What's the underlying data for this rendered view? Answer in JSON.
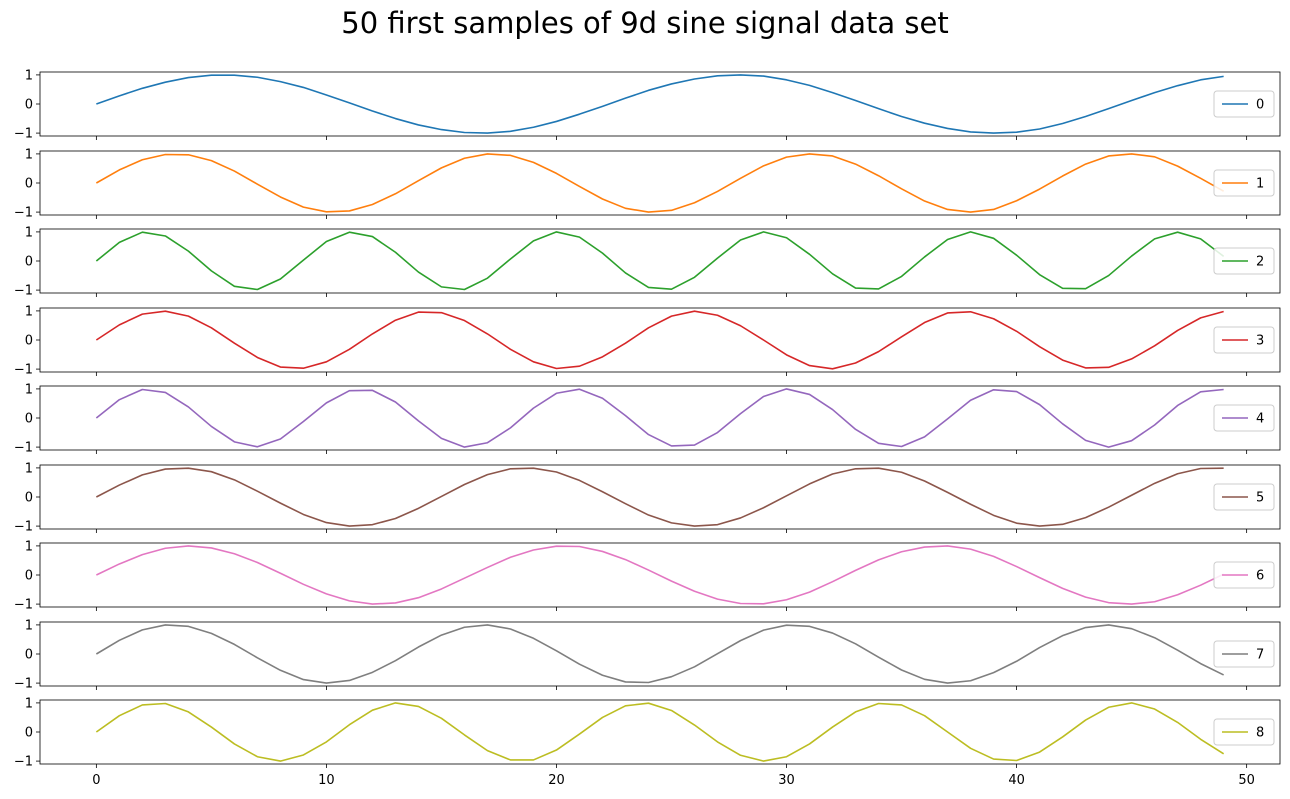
{
  "chart_data": {
    "type": "line",
    "title": "50 first samples of 9d sine signal data set",
    "xlabel": "",
    "ylabel": "",
    "xlim": [
      -2.45,
      51.45
    ],
    "ylim": [
      -1.1,
      1.1
    ],
    "x_ticks": [
      0,
      10,
      20,
      30,
      40,
      50
    ],
    "y_ticks": [
      -1,
      0,
      1
    ],
    "grid": false,
    "legend_placement": "right",
    "x": [
      0,
      1,
      2,
      3,
      4,
      5,
      6,
      7,
      8,
      9,
      10,
      11,
      12,
      13,
      14,
      15,
      16,
      17,
      18,
      19,
      20,
      21,
      22,
      23,
      24,
      25,
      26,
      27,
      28,
      29,
      30,
      31,
      32,
      33,
      34,
      35,
      36,
      37,
      38,
      39,
      40,
      41,
      42,
      43,
      44,
      45,
      46,
      47,
      48,
      49
    ],
    "series": [
      {
        "name": "0",
        "color": "#1f77b4",
        "values": [
          0.0,
          0.28,
          0.54,
          0.75,
          0.91,
          0.99,
          0.99,
          0.92,
          0.77,
          0.57,
          0.31,
          0.04,
          -0.24,
          -0.5,
          -0.72,
          -0.88,
          -0.98,
          -1.0,
          -0.94,
          -0.8,
          -0.6,
          -0.35,
          -0.08,
          0.2,
          0.47,
          0.69,
          0.86,
          0.97,
          1.0,
          0.96,
          0.83,
          0.64,
          0.39,
          0.12,
          -0.16,
          -0.43,
          -0.66,
          -0.84,
          -0.96,
          -1.0,
          -0.97,
          -0.86,
          -0.67,
          -0.43,
          -0.16,
          0.12,
          0.39,
          0.63,
          0.83,
          0.95
        ]
      },
      {
        "name": "1",
        "color": "#ff7f0e",
        "values": [
          0.0,
          0.45,
          0.8,
          0.98,
          0.97,
          0.77,
          0.41,
          -0.04,
          -0.48,
          -0.83,
          -0.99,
          -0.96,
          -0.74,
          -0.37,
          0.08,
          0.52,
          0.85,
          1.0,
          0.95,
          0.71,
          0.33,
          -0.12,
          -0.55,
          -0.87,
          -1.0,
          -0.94,
          -0.68,
          -0.29,
          0.16,
          0.59,
          0.89,
          1.0,
          0.93,
          0.65,
          0.25,
          -0.2,
          -0.62,
          -0.91,
          -1.0,
          -0.91,
          -0.61,
          -0.21,
          0.24,
          0.65,
          0.93,
          1.0,
          0.9,
          0.58,
          0.16,
          -0.28
        ]
      },
      {
        "name": "2",
        "color": "#2ca02c",
        "values": [
          0.0,
          0.64,
          0.99,
          0.86,
          0.34,
          -0.34,
          -0.87,
          -0.98,
          -0.62,
          0.03,
          0.67,
          0.99,
          0.84,
          0.3,
          -0.38,
          -0.89,
          -0.98,
          -0.59,
          0.07,
          0.69,
          1.0,
          0.82,
          0.27,
          -0.41,
          -0.91,
          -0.97,
          -0.56,
          0.1,
          0.72,
          1.0,
          0.8,
          0.23,
          -0.44,
          -0.93,
          -0.96,
          -0.53,
          0.14,
          0.74,
          1.0,
          0.78,
          0.2,
          -0.47,
          -0.94,
          -0.95,
          -0.5,
          0.17,
          0.76,
          0.99,
          0.76,
          0.16
        ]
      },
      {
        "name": "3",
        "color": "#d62728",
        "values": [
          0.0,
          0.52,
          0.89,
          0.99,
          0.82,
          0.42,
          -0.11,
          -0.6,
          -0.93,
          -0.97,
          -0.75,
          -0.32,
          0.21,
          0.68,
          0.96,
          0.94,
          0.67,
          0.21,
          -0.32,
          -0.75,
          -0.98,
          -0.9,
          -0.58,
          -0.11,
          0.42,
          0.82,
          0.99,
          0.85,
          0.49,
          0.0,
          -0.51,
          -0.88,
          -0.99,
          -0.79,
          -0.4,
          0.11,
          0.6,
          0.93,
          0.97,
          0.73,
          0.3,
          -0.23,
          -0.69,
          -0.96,
          -0.94,
          -0.65,
          -0.2,
          0.33,
          0.76,
          0.98
        ]
      },
      {
        "name": "4",
        "color": "#9467bd",
        "values": [
          0.0,
          0.63,
          0.98,
          0.88,
          0.38,
          -0.29,
          -0.82,
          -0.99,
          -0.72,
          -0.12,
          0.52,
          0.94,
          0.95,
          0.55,
          -0.1,
          -0.7,
          -1.0,
          -0.85,
          -0.34,
          0.34,
          0.85,
          0.99,
          0.68,
          0.08,
          -0.57,
          -0.96,
          -0.93,
          -0.5,
          0.15,
          0.74,
          1.0,
          0.81,
          0.29,
          -0.39,
          -0.87,
          -0.98,
          -0.65,
          -0.03,
          0.61,
          0.97,
          0.91,
          0.46,
          -0.2,
          -0.77,
          -1.0,
          -0.78,
          -0.24,
          0.43,
          0.9,
          0.98
        ]
      },
      {
        "name": "5",
        "color": "#8c564b",
        "values": [
          0.0,
          0.41,
          0.76,
          0.96,
          0.99,
          0.87,
          0.59,
          0.2,
          -0.21,
          -0.6,
          -0.88,
          -1.0,
          -0.95,
          -0.74,
          -0.39,
          0.02,
          0.43,
          0.77,
          0.97,
          0.99,
          0.86,
          0.57,
          0.18,
          -0.23,
          -0.62,
          -0.89,
          -1.0,
          -0.95,
          -0.72,
          -0.37,
          0.04,
          0.45,
          0.79,
          0.97,
          0.99,
          0.85,
          0.55,
          0.16,
          -0.25,
          -0.63,
          -0.9,
          -1.0,
          -0.94,
          -0.71,
          -0.35,
          0.06,
          0.47,
          0.8,
          0.98,
          0.99
        ]
      },
      {
        "name": "6",
        "color": "#e377c2",
        "values": [
          0.0,
          0.38,
          0.7,
          0.92,
          1.0,
          0.93,
          0.73,
          0.43,
          0.06,
          -0.32,
          -0.65,
          -0.89,
          -1.0,
          -0.96,
          -0.78,
          -0.48,
          -0.11,
          0.26,
          0.61,
          0.86,
          0.99,
          0.98,
          0.81,
          0.53,
          0.17,
          -0.21,
          -0.56,
          -0.83,
          -0.98,
          -0.99,
          -0.85,
          -0.59,
          -0.23,
          0.16,
          0.52,
          0.8,
          0.96,
          1.0,
          0.89,
          0.64,
          0.29,
          -0.09,
          -0.46,
          -0.76,
          -0.95,
          -1.0,
          -0.92,
          -0.68,
          -0.35,
          0.03
        ]
      },
      {
        "name": "7",
        "color": "#7f7f7f",
        "values": [
          0.0,
          0.47,
          0.83,
          1.0,
          0.95,
          0.71,
          0.33,
          -0.13,
          -0.56,
          -0.88,
          -1.0,
          -0.91,
          -0.63,
          -0.23,
          0.24,
          0.65,
          0.92,
          1.0,
          0.86,
          0.54,
          0.11,
          -0.35,
          -0.73,
          -0.96,
          -0.98,
          -0.78,
          -0.44,
          0.01,
          0.46,
          0.82,
          0.99,
          0.95,
          0.72,
          0.35,
          -0.11,
          -0.55,
          -0.87,
          -1.0,
          -0.92,
          -0.64,
          -0.25,
          0.22,
          0.63,
          0.91,
          1.0,
          0.87,
          0.56,
          0.13,
          -0.33,
          -0.72
        ]
      },
      {
        "name": "8",
        "color": "#bcbd22",
        "values": [
          0.0,
          0.56,
          0.93,
          0.98,
          0.69,
          0.17,
          -0.41,
          -0.85,
          -1.0,
          -0.79,
          -0.34,
          0.25,
          0.75,
          1.0,
          0.88,
          0.47,
          -0.1,
          -0.64,
          -0.96,
          -0.96,
          -0.62,
          -0.07,
          0.5,
          0.9,
          0.99,
          0.74,
          0.24,
          -0.34,
          -0.8,
          -1.0,
          -0.85,
          -0.41,
          0.17,
          0.69,
          0.98,
          0.93,
          0.56,
          0.0,
          -0.56,
          -0.93,
          -0.98,
          -0.69,
          -0.17,
          0.41,
          0.85,
          1.0,
          0.79,
          0.33,
          -0.25,
          -0.75
        ]
      }
    ]
  }
}
